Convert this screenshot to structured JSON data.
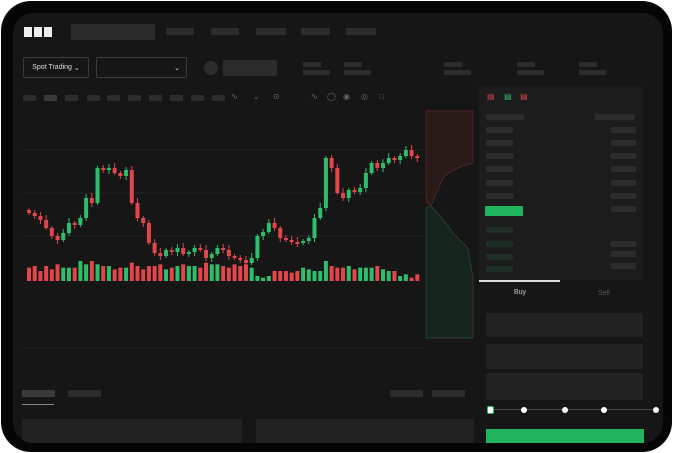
{
  "header": {
    "logo": "OKX"
  },
  "market": {
    "mode_button": "Spot Trading",
    "pair_dropdown": ""
  },
  "order_form": {
    "tabs": [
      "Buy",
      "Sell"
    ],
    "active_tab": "Buy",
    "slider_percent": 0,
    "slider_steps": [
      0,
      25,
      50,
      75,
      100
    ]
  },
  "colors": {
    "up": "#2ebd6b",
    "down": "#e0464a",
    "accent": "#22b35e",
    "background": "#161616"
  },
  "toolbar_icons": [
    "indicator-icon",
    "chart-type-icon",
    "timeframe-icon",
    "line-tool-icon",
    "ruler-icon",
    "camera-icon",
    "settings-icon",
    "fullscreen-icon"
  ],
  "book_layout_icons": [
    "book-both-icon",
    "book-bids-icon",
    "book-asks-icon"
  ],
  "chart_data": {
    "type": "candlestick",
    "closes": [
      95,
      92,
      88,
      80,
      72,
      68,
      75,
      85,
      83,
      90,
      110,
      105,
      140,
      138,
      140,
      135,
      132,
      138,
      105,
      90,
      85,
      65,
      55,
      52,
      58,
      56,
      60,
      54,
      56,
      60,
      58,
      50,
      54,
      60,
      58,
      52,
      50,
      48,
      45,
      50,
      72,
      76,
      85,
      80,
      70,
      68,
      66,
      65,
      67,
      70,
      90,
      100,
      150,
      140,
      115,
      110,
      118,
      116,
      120,
      135,
      145,
      140,
      145,
      150,
      148,
      152,
      158,
      152,
      150
    ],
    "volumes": [
      8,
      9,
      6,
      9,
      7,
      10,
      8,
      8,
      8,
      12,
      10,
      12,
      10,
      9,
      9,
      7,
      8,
      8,
      11,
      9,
      7,
      9,
      9,
      10,
      7,
      8,
      9,
      10,
      9,
      9,
      8,
      11,
      10,
      10,
      9,
      8,
      10,
      9,
      10,
      8,
      3,
      2,
      3,
      6,
      6,
      6,
      5,
      6,
      8,
      7,
      6,
      6,
      12,
      9,
      8,
      8,
      9,
      7,
      8,
      8,
      8,
      9,
      7,
      6,
      6,
      3,
      4,
      2,
      4
    ]
  }
}
